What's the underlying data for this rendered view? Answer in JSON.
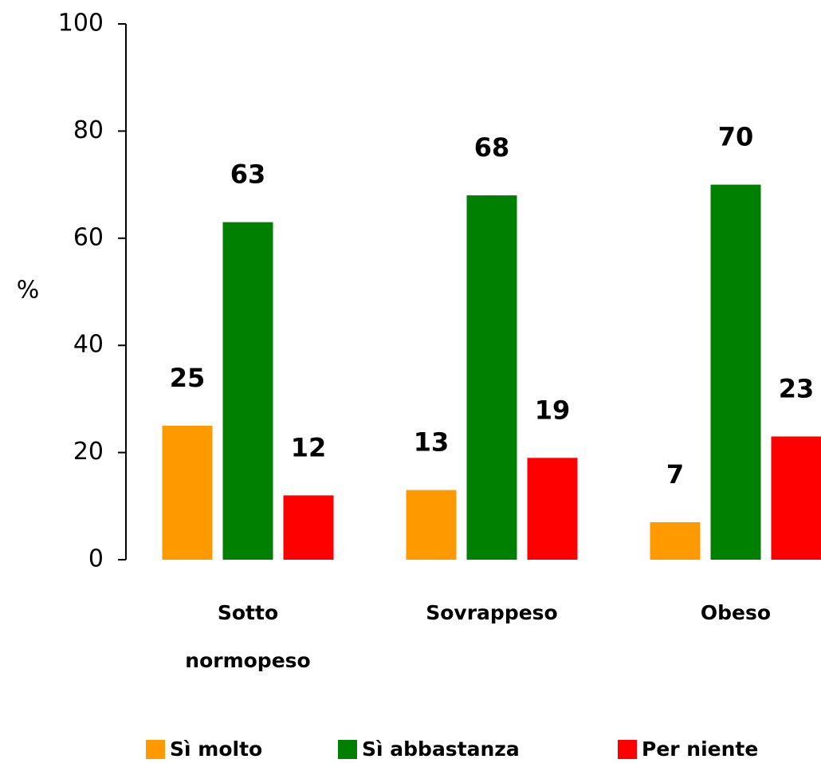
{
  "chart_data": {
    "type": "bar",
    "categories": [
      "Sotto normopeso",
      "Sovrappeso",
      "Obeso"
    ],
    "series": [
      {
        "name": "Sì molto",
        "color": "#ff9900",
        "values": [
          25,
          13,
          7
        ]
      },
      {
        "name": "Sì abbastanza",
        "color": "#008000",
        "values": [
          63,
          68,
          70
        ]
      },
      {
        "name": "Per niente",
        "color": "#ff0000",
        "values": [
          12,
          19,
          23
        ]
      }
    ],
    "ylabel": "%",
    "ylim": [
      0,
      100
    ],
    "yticks": [
      0,
      20,
      40,
      60,
      80,
      100
    ]
  }
}
